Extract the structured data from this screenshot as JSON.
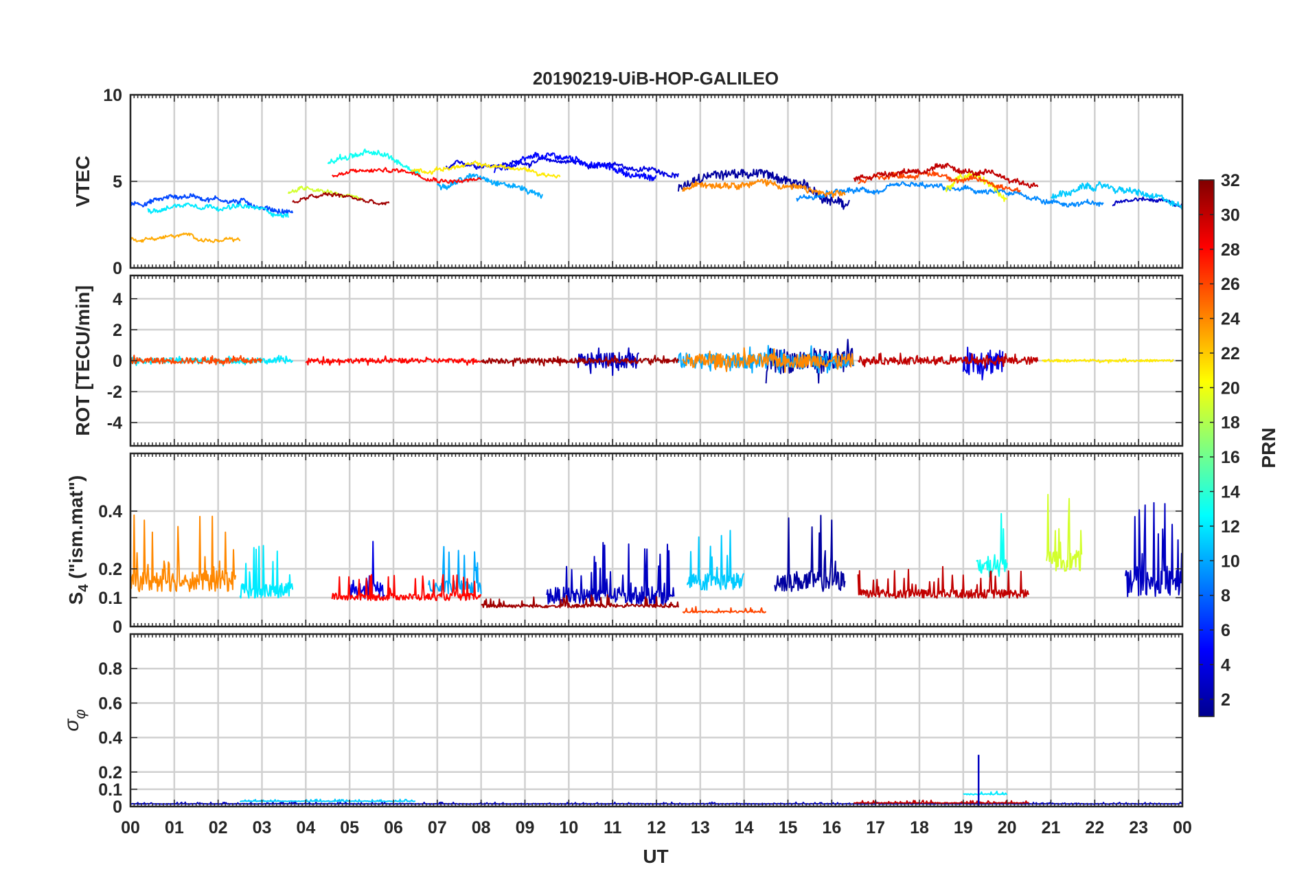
{
  "chart_data": {
    "type": "line",
    "title": "20190219-UiB-HOP-GALILEO",
    "xlabel": "UT",
    "x_range_hours": [
      0,
      24
    ],
    "x_tick_labels": [
      "00",
      "01",
      "02",
      "03",
      "04",
      "05",
      "06",
      "07",
      "08",
      "09",
      "10",
      "11",
      "12",
      "13",
      "14",
      "15",
      "16",
      "17",
      "18",
      "19",
      "20",
      "21",
      "22",
      "23",
      "00"
    ],
    "grid": true,
    "colorbar": {
      "label": "PRN",
      "range": [
        1,
        32
      ],
      "colormap": "jet",
      "placement": "right",
      "tick_labels": [
        "2",
        "4",
        "6",
        "8",
        "10",
        "12",
        "14",
        "16",
        "18",
        "20",
        "22",
        "24",
        "26",
        "28",
        "30",
        "32"
      ]
    },
    "panels": [
      {
        "id": "vtec",
        "ylabel": "VTEC",
        "ylim": [
          0,
          10
        ],
        "y_ticks": [
          0,
          5,
          10
        ],
        "y_tick_labels": [
          "0",
          "5",
          "10"
        ],
        "series": [
          {
            "prn": 2,
            "t_range": [
              12.5,
              16.4
            ],
            "mean": 4.5,
            "noise": 1.3
          },
          {
            "prn": 3,
            "t_range": [
              22.4,
              24.0
            ],
            "mean": 3.6,
            "noise": 0.4
          },
          {
            "prn": 4,
            "t_range": [
              7.2,
              12.5
            ],
            "mean": 5.8,
            "noise": 0.5
          },
          {
            "prn": 5,
            "t_range": [
              8.3,
              12.0
            ],
            "mean": 5.6,
            "noise": 0.8
          },
          {
            "prn": 7,
            "t_range": [
              0.0,
              3.7
            ],
            "mean": 3.7,
            "noise": 0.6
          },
          {
            "prn": 9,
            "t_range": [
              15.2,
              22.2
            ],
            "mean": 4.0,
            "noise": 0.6
          },
          {
            "prn": 10,
            "t_range": [
              7.0,
              9.4
            ],
            "mean": 4.8,
            "noise": 0.7
          },
          {
            "prn": 11,
            "t_range": [
              21.0,
              24.0
            ],
            "mean": 4.0,
            "noise": 0.8
          },
          {
            "prn": 12,
            "t_range": [
              0.4,
              3.6
            ],
            "mean": 3.4,
            "noise": 0.5
          },
          {
            "prn": 13,
            "t_range": [
              4.5,
              6.6
            ],
            "mean": 6.0,
            "noise": 0.7
          },
          {
            "prn": 19,
            "t_range": [
              3.6,
              5.3
            ],
            "mean": 4.3,
            "noise": 0.4
          },
          {
            "prn": 20,
            "t_range": [
              18.6,
              20.0
            ],
            "mean": 4.5,
            "noise": 0.9
          },
          {
            "prn": 21,
            "t_range": [
              6.4,
              9.8
            ],
            "mean": 5.6,
            "noise": 0.4
          },
          {
            "prn": 23,
            "t_range": [
              0.0,
              2.5
            ],
            "mean": 1.6,
            "noise": 0.3
          },
          {
            "prn": 24,
            "t_range": [
              12.6,
              16.3
            ],
            "mean": 4.5,
            "noise": 0.8
          },
          {
            "prn": 26,
            "t_range": [
              16.6,
              20.3
            ],
            "mean": 5.0,
            "noise": 0.6
          },
          {
            "prn": 28,
            "t_range": [
              4.6,
              8.0
            ],
            "mean": 5.3,
            "noise": 0.4
          },
          {
            "prn": 30,
            "t_range": [
              16.5,
              20.7
            ],
            "mean": 5.2,
            "noise": 0.7
          },
          {
            "prn": 31,
            "t_range": [
              3.7,
              5.9
            ],
            "mean": 3.8,
            "noise": 0.4
          }
        ]
      },
      {
        "id": "rot",
        "ylabel": "ROT [TECU/min]",
        "ylim": [
          -5.5,
          5.5
        ],
        "y_ticks": [
          -4,
          -2,
          0,
          2,
          4
        ],
        "y_tick_labels": [
          "-4",
          "-2",
          "0",
          "2",
          "4"
        ],
        "series": [
          {
            "prn": 2,
            "t_range": [
              14.5,
              16.5
            ],
            "mean": 0.0,
            "noise": 1.6
          },
          {
            "prn": 3,
            "t_range": [
              10.2,
              11.6
            ],
            "mean": 0.0,
            "noise": 1.0
          },
          {
            "prn": 4,
            "t_range": [
              19.0,
              19.9
            ],
            "mean": 0.0,
            "noise": 1.8
          },
          {
            "prn": 10,
            "t_range": [
              12.5,
              16.5
            ],
            "mean": 0.0,
            "noise": 1.0
          },
          {
            "prn": 12,
            "t_range": [
              0.0,
              3.7
            ],
            "mean": 0.0,
            "noise": 0.35
          },
          {
            "prn": 21,
            "t_range": [
              20.8,
              23.8
            ],
            "mean": 0.0,
            "noise": 0.15
          },
          {
            "prn": 24,
            "t_range": [
              12.6,
              16.5
            ],
            "mean": 0.0,
            "noise": 0.9
          },
          {
            "prn": 26,
            "t_range": [
              0.0,
              3.0
            ],
            "mean": 0.0,
            "noise": 0.4
          },
          {
            "prn": 28,
            "t_range": [
              4.0,
              8.0
            ],
            "mean": 0.0,
            "noise": 0.3
          },
          {
            "prn": 30,
            "t_range": [
              16.6,
              20.7
            ],
            "mean": 0.0,
            "noise": 0.5
          },
          {
            "prn": 31,
            "t_range": [
              8.0,
              12.5
            ],
            "mean": 0.0,
            "noise": 0.35
          }
        ]
      },
      {
        "id": "s4",
        "ylabel": "S4 (\"ism.mat\")",
        "ylim": [
          0,
          0.6
        ],
        "y_ticks": [
          0,
          0.1,
          0.2,
          0.4
        ],
        "y_tick_labels": [
          "0",
          "0.1",
          "0.2",
          "0.4"
        ],
        "series": [
          {
            "prn": 2,
            "t_range": [
              14.7,
              16.3
            ],
            "mean": 0.15,
            "noise": 0.12
          },
          {
            "prn": 3,
            "t_range": [
              9.5,
              12.4
            ],
            "mean": 0.1,
            "noise": 0.1
          },
          {
            "prn": 3,
            "t_range": [
              22.7,
              24.0
            ],
            "mean": 0.14,
            "noise": 0.15
          },
          {
            "prn": 4,
            "t_range": [
              5.0,
              5.8
            ],
            "mean": 0.12,
            "noise": 0.1
          },
          {
            "prn": 10,
            "t_range": [
              6.8,
              8.0
            ],
            "mean": 0.13,
            "noise": 0.08
          },
          {
            "prn": 11,
            "t_range": [
              12.7,
              14.0
            ],
            "mean": 0.15,
            "noise": 0.1
          },
          {
            "prn": 12,
            "t_range": [
              2.5,
              3.7
            ],
            "mean": 0.12,
            "noise": 0.09
          },
          {
            "prn": 13,
            "t_range": [
              19.3,
              20.0
            ],
            "mean": 0.2,
            "noise": 0.12
          },
          {
            "prn": 19,
            "t_range": [
              20.9,
              21.7
            ],
            "mean": 0.22,
            "noise": 0.12
          },
          {
            "prn": 24,
            "t_range": [
              0.0,
              2.4
            ],
            "mean": 0.15,
            "noise": 0.12
          },
          {
            "prn": 26,
            "t_range": [
              12.6,
              14.5
            ],
            "mean": 0.05,
            "noise": 0.01
          },
          {
            "prn": 28,
            "t_range": [
              4.6,
              8.0
            ],
            "mean": 0.1,
            "noise": 0.04
          },
          {
            "prn": 30,
            "t_range": [
              16.6,
              20.5
            ],
            "mean": 0.11,
            "noise": 0.05
          },
          {
            "prn": 31,
            "t_range": [
              8.0,
              12.5
            ],
            "mean": 0.07,
            "noise": 0.02
          }
        ]
      },
      {
        "id": "sigma_phi",
        "ylabel": "σφ",
        "ylim": [
          0,
          1
        ],
        "y_ticks": [
          0,
          0.1,
          0.2,
          0.4,
          0.6,
          0.8
        ],
        "y_tick_labels": [
          "0",
          "0.1",
          "0.2",
          "0.4",
          "0.6",
          "0.8"
        ],
        "series": [
          {
            "prn": 3,
            "t_range": [
              0.0,
              24.0
            ],
            "mean": 0.015,
            "noise": 0.005
          },
          {
            "prn": 11,
            "t_range": [
              2.5,
              6.5
            ],
            "mean": 0.03,
            "noise": 0.006
          },
          {
            "prn": 12,
            "t_range": [
              19.0,
              20.0
            ],
            "mean": 0.07,
            "noise": 0.01
          },
          {
            "prn": 30,
            "t_range": [
              16.5,
              20.5
            ],
            "mean": 0.02,
            "noise": 0.008
          }
        ],
        "spikes": [
          {
            "prn": 3,
            "t": 19.35,
            "value": 0.3
          }
        ]
      }
    ]
  }
}
